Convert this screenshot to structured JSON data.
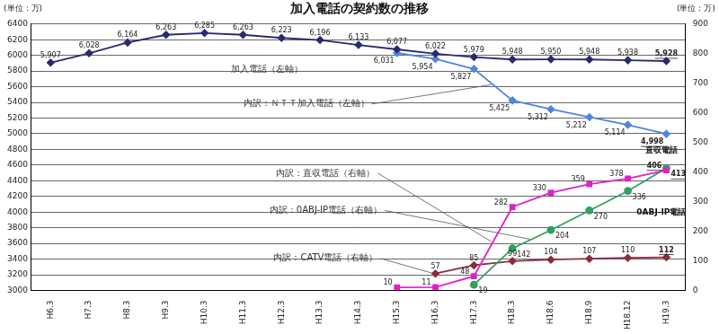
{
  "chart_data": {
    "type": "line",
    "title": "加入電話の契約数の推移",
    "ylabel": "(単位：万)",
    "y2label": "(単位：万)",
    "categories": [
      "H6.3",
      "H7.3",
      "H8.3",
      "H9.3",
      "H10.3",
      "H11.3",
      "H12.3",
      "H13.3",
      "H14.3",
      "H15.3",
      "H16.3",
      "H17.3",
      "H18.3",
      "H18.6",
      "H18.9",
      "H18.12",
      "H19.3"
    ],
    "ylim": [
      3000,
      6400
    ],
    "yticks": [
      3000,
      3200,
      3400,
      3600,
      3800,
      4000,
      4200,
      4400,
      4600,
      4800,
      5000,
      5200,
      5400,
      5600,
      5800,
      6000,
      6200,
      6400
    ],
    "y2lim": [
      0,
      900
    ],
    "y2ticks": [
      0,
      100,
      200,
      300,
      400,
      500,
      600,
      700,
      800,
      900
    ],
    "grid": true,
    "data_labels": true,
    "series": [
      {
        "name": "加入電話（左軸）",
        "color": "#2a2a70",
        "marker": "diamond",
        "values": [
          5907,
          6028,
          6164,
          6263,
          6285,
          6263,
          6223,
          6196,
          6133,
          6077,
          6022,
          5979,
          5948,
          5950,
          5948,
          5938,
          5928
        ],
        "value_labels": [
          "5,907",
          "6,028",
          "6,164",
          "6,263",
          "6,285",
          "6,263",
          "6,223",
          "6,196",
          "6,133",
          "6,077",
          "6,022",
          "5,979",
          "5,948",
          "5,950",
          "5,948",
          "5,938",
          "5,928"
        ]
      },
      {
        "name": "内訳：ＮＴＴ加入電話（左軸）",
        "color": "#4f86e0",
        "marker": "diamond",
        "values": [
          null,
          null,
          null,
          null,
          null,
          null,
          null,
          null,
          null,
          6031,
          5954,
          5827,
          5425,
          5312,
          5212,
          5114,
          4998
        ],
        "value_labels": [
          null,
          null,
          null,
          null,
          null,
          null,
          null,
          null,
          null,
          "6,031",
          "5,954",
          "5,827",
          "5,425",
          "5,312",
          "5,212",
          "5,114",
          "4,998"
        ]
      },
      {
        "name": "内訳：直収電話（右軸）",
        "color": "#e020c8",
        "marker": "square",
        "axis": "y2",
        "values": [
          null,
          null,
          null,
          null,
          null,
          null,
          null,
          null,
          null,
          10,
          11,
          48,
          282,
          330,
          359,
          378,
          406
        ]
      },
      {
        "name": "内訳：0ABJ-IP電話（右軸）",
        "color": "#2fa060",
        "marker": "circle",
        "axis": "y2",
        "values": [
          null,
          null,
          null,
          null,
          null,
          null,
          null,
          null,
          null,
          null,
          null,
          19,
          142,
          204,
          270,
          336,
          413
        ]
      },
      {
        "name": "内訳：CATV電話（右軸）",
        "color": "#8e2a3c",
        "marker": "diamond",
        "axis": "y2",
        "values": [
          null,
          null,
          null,
          null,
          null,
          null,
          null,
          null,
          null,
          null,
          57,
          85,
          99,
          104,
          107,
          110,
          112
        ]
      }
    ],
    "annotations": [
      "直収電話",
      "0ABJ-IP電話"
    ]
  }
}
